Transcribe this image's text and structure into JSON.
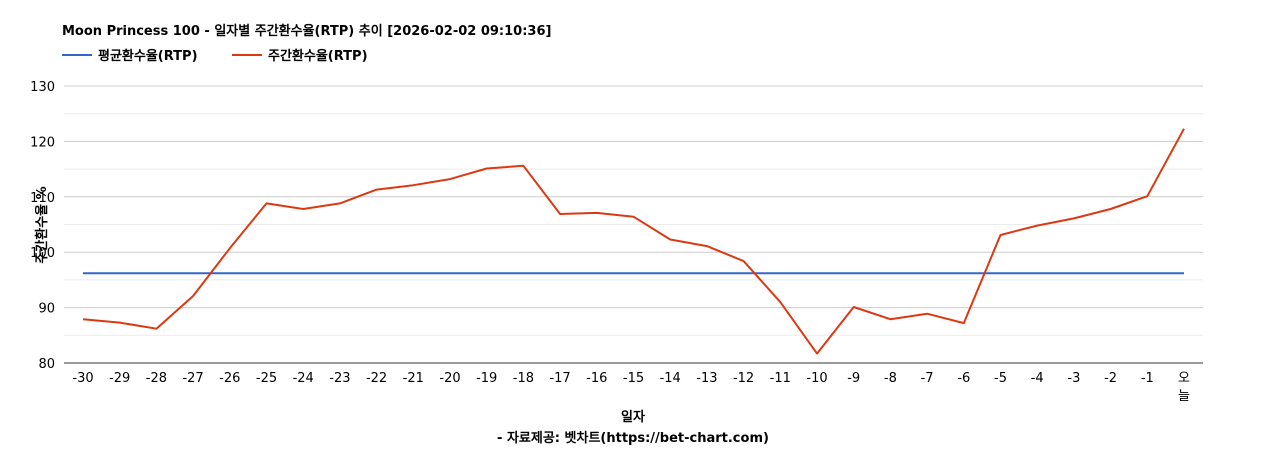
{
  "chart_data": {
    "type": "line",
    "title": "Moon Princess 100 - 일자별 주간환수율(RTP) 추이 [2026-02-02 09:10:36]",
    "xlabel": "일자",
    "ylabel": "주간환수율 %",
    "credit": "- 자료제공: 벳차트(https://bet-chart.com)",
    "categories": [
      "-30",
      "-29",
      "-28",
      "-27",
      "-26",
      "-25",
      "-24",
      "-23",
      "-22",
      "-21",
      "-20",
      "-19",
      "-18",
      "-17",
      "-16",
      "-15",
      "-14",
      "-13",
      "-12",
      "-11",
      "-10",
      "-9",
      "-8",
      "-7",
      "-6",
      "-5",
      "-4",
      "-3",
      "-2",
      "-1",
      "오늘"
    ],
    "ylim": [
      80,
      130
    ],
    "yticks": [
      80,
      90,
      100,
      110,
      120,
      130
    ],
    "grid": true,
    "legend_position": "top-left",
    "series": [
      {
        "name": "평균환수율(RTP)",
        "color": "#3366cc",
        "values": [
          96.2,
          96.2,
          96.2,
          96.2,
          96.2,
          96.2,
          96.2,
          96.2,
          96.2,
          96.2,
          96.2,
          96.2,
          96.2,
          96.2,
          96.2,
          96.2,
          96.2,
          96.2,
          96.2,
          96.2,
          96.2,
          96.2,
          96.2,
          96.2,
          96.2,
          96.2,
          96.2,
          96.2,
          96.2,
          96.2,
          96.2
        ]
      },
      {
        "name": "주간환수율(RTP)",
        "color": "#dc3912",
        "values": [
          87.9,
          87.3,
          86.2,
          92.1,
          100.7,
          108.8,
          107.8,
          108.8,
          111.3,
          112.1,
          113.2,
          115.1,
          115.6,
          106.9,
          107.1,
          106.4,
          102.3,
          101.1,
          98.4,
          91.0,
          81.7,
          90.1,
          87.9,
          88.9,
          87.2,
          103.1,
          104.8,
          106.1,
          107.8,
          110.1,
          122.3
        ]
      }
    ]
  }
}
